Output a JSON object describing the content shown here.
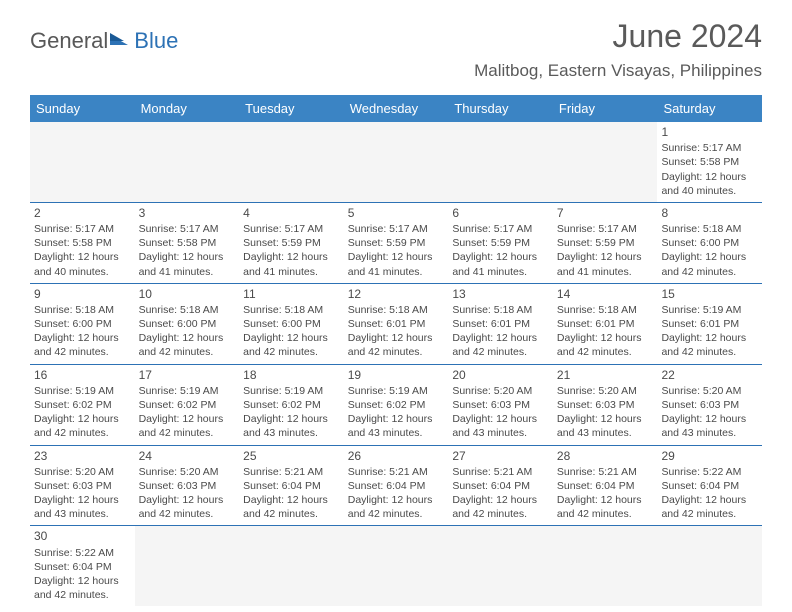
{
  "logo": {
    "text1": "General",
    "text2": "Blue"
  },
  "title": "June 2024",
  "location": "Malitbog, Eastern Visayas, Philippines",
  "daynames": [
    "Sunday",
    "Monday",
    "Tuesday",
    "Wednesday",
    "Thursday",
    "Friday",
    "Saturday"
  ],
  "colors": {
    "header_bg": "#3b84c4",
    "rule": "#2d72b5",
    "text": "#4a4a4a",
    "empty_bg": "#f3f3f3"
  },
  "weeks": [
    [
      {
        "empty": true
      },
      {
        "empty": true
      },
      {
        "empty": true
      },
      {
        "empty": true
      },
      {
        "empty": true
      },
      {
        "empty": true
      },
      {
        "num": "1",
        "sunrise": "Sunrise: 5:17 AM",
        "sunset": "Sunset: 5:58 PM",
        "day1": "Daylight: 12 hours",
        "day2": "and 40 minutes."
      }
    ],
    [
      {
        "num": "2",
        "sunrise": "Sunrise: 5:17 AM",
        "sunset": "Sunset: 5:58 PM",
        "day1": "Daylight: 12 hours",
        "day2": "and 40 minutes."
      },
      {
        "num": "3",
        "sunrise": "Sunrise: 5:17 AM",
        "sunset": "Sunset: 5:58 PM",
        "day1": "Daylight: 12 hours",
        "day2": "and 41 minutes."
      },
      {
        "num": "4",
        "sunrise": "Sunrise: 5:17 AM",
        "sunset": "Sunset: 5:59 PM",
        "day1": "Daylight: 12 hours",
        "day2": "and 41 minutes."
      },
      {
        "num": "5",
        "sunrise": "Sunrise: 5:17 AM",
        "sunset": "Sunset: 5:59 PM",
        "day1": "Daylight: 12 hours",
        "day2": "and 41 minutes."
      },
      {
        "num": "6",
        "sunrise": "Sunrise: 5:17 AM",
        "sunset": "Sunset: 5:59 PM",
        "day1": "Daylight: 12 hours",
        "day2": "and 41 minutes."
      },
      {
        "num": "7",
        "sunrise": "Sunrise: 5:17 AM",
        "sunset": "Sunset: 5:59 PM",
        "day1": "Daylight: 12 hours",
        "day2": "and 41 minutes."
      },
      {
        "num": "8",
        "sunrise": "Sunrise: 5:18 AM",
        "sunset": "Sunset: 6:00 PM",
        "day1": "Daylight: 12 hours",
        "day2": "and 42 minutes."
      }
    ],
    [
      {
        "num": "9",
        "sunrise": "Sunrise: 5:18 AM",
        "sunset": "Sunset: 6:00 PM",
        "day1": "Daylight: 12 hours",
        "day2": "and 42 minutes."
      },
      {
        "num": "10",
        "sunrise": "Sunrise: 5:18 AM",
        "sunset": "Sunset: 6:00 PM",
        "day1": "Daylight: 12 hours",
        "day2": "and 42 minutes."
      },
      {
        "num": "11",
        "sunrise": "Sunrise: 5:18 AM",
        "sunset": "Sunset: 6:00 PM",
        "day1": "Daylight: 12 hours",
        "day2": "and 42 minutes."
      },
      {
        "num": "12",
        "sunrise": "Sunrise: 5:18 AM",
        "sunset": "Sunset: 6:01 PM",
        "day1": "Daylight: 12 hours",
        "day2": "and 42 minutes."
      },
      {
        "num": "13",
        "sunrise": "Sunrise: 5:18 AM",
        "sunset": "Sunset: 6:01 PM",
        "day1": "Daylight: 12 hours",
        "day2": "and 42 minutes."
      },
      {
        "num": "14",
        "sunrise": "Sunrise: 5:18 AM",
        "sunset": "Sunset: 6:01 PM",
        "day1": "Daylight: 12 hours",
        "day2": "and 42 minutes."
      },
      {
        "num": "15",
        "sunrise": "Sunrise: 5:19 AM",
        "sunset": "Sunset: 6:01 PM",
        "day1": "Daylight: 12 hours",
        "day2": "and 42 minutes."
      }
    ],
    [
      {
        "num": "16",
        "sunrise": "Sunrise: 5:19 AM",
        "sunset": "Sunset: 6:02 PM",
        "day1": "Daylight: 12 hours",
        "day2": "and 42 minutes."
      },
      {
        "num": "17",
        "sunrise": "Sunrise: 5:19 AM",
        "sunset": "Sunset: 6:02 PM",
        "day1": "Daylight: 12 hours",
        "day2": "and 42 minutes."
      },
      {
        "num": "18",
        "sunrise": "Sunrise: 5:19 AM",
        "sunset": "Sunset: 6:02 PM",
        "day1": "Daylight: 12 hours",
        "day2": "and 43 minutes."
      },
      {
        "num": "19",
        "sunrise": "Sunrise: 5:19 AM",
        "sunset": "Sunset: 6:02 PM",
        "day1": "Daylight: 12 hours",
        "day2": "and 43 minutes."
      },
      {
        "num": "20",
        "sunrise": "Sunrise: 5:20 AM",
        "sunset": "Sunset: 6:03 PM",
        "day1": "Daylight: 12 hours",
        "day2": "and 43 minutes."
      },
      {
        "num": "21",
        "sunrise": "Sunrise: 5:20 AM",
        "sunset": "Sunset: 6:03 PM",
        "day1": "Daylight: 12 hours",
        "day2": "and 43 minutes."
      },
      {
        "num": "22",
        "sunrise": "Sunrise: 5:20 AM",
        "sunset": "Sunset: 6:03 PM",
        "day1": "Daylight: 12 hours",
        "day2": "and 43 minutes."
      }
    ],
    [
      {
        "num": "23",
        "sunrise": "Sunrise: 5:20 AM",
        "sunset": "Sunset: 6:03 PM",
        "day1": "Daylight: 12 hours",
        "day2": "and 43 minutes."
      },
      {
        "num": "24",
        "sunrise": "Sunrise: 5:20 AM",
        "sunset": "Sunset: 6:03 PM",
        "day1": "Daylight: 12 hours",
        "day2": "and 42 minutes."
      },
      {
        "num": "25",
        "sunrise": "Sunrise: 5:21 AM",
        "sunset": "Sunset: 6:04 PM",
        "day1": "Daylight: 12 hours",
        "day2": "and 42 minutes."
      },
      {
        "num": "26",
        "sunrise": "Sunrise: 5:21 AM",
        "sunset": "Sunset: 6:04 PM",
        "day1": "Daylight: 12 hours",
        "day2": "and 42 minutes."
      },
      {
        "num": "27",
        "sunrise": "Sunrise: 5:21 AM",
        "sunset": "Sunset: 6:04 PM",
        "day1": "Daylight: 12 hours",
        "day2": "and 42 minutes."
      },
      {
        "num": "28",
        "sunrise": "Sunrise: 5:21 AM",
        "sunset": "Sunset: 6:04 PM",
        "day1": "Daylight: 12 hours",
        "day2": "and 42 minutes."
      },
      {
        "num": "29",
        "sunrise": "Sunrise: 5:22 AM",
        "sunset": "Sunset: 6:04 PM",
        "day1": "Daylight: 12 hours",
        "day2": "and 42 minutes."
      }
    ],
    [
      {
        "num": "30",
        "sunrise": "Sunrise: 5:22 AM",
        "sunset": "Sunset: 6:04 PM",
        "day1": "Daylight: 12 hours",
        "day2": "and 42 minutes."
      },
      {
        "empty": true
      },
      {
        "empty": true
      },
      {
        "empty": true
      },
      {
        "empty": true
      },
      {
        "empty": true
      },
      {
        "empty": true
      }
    ]
  ]
}
